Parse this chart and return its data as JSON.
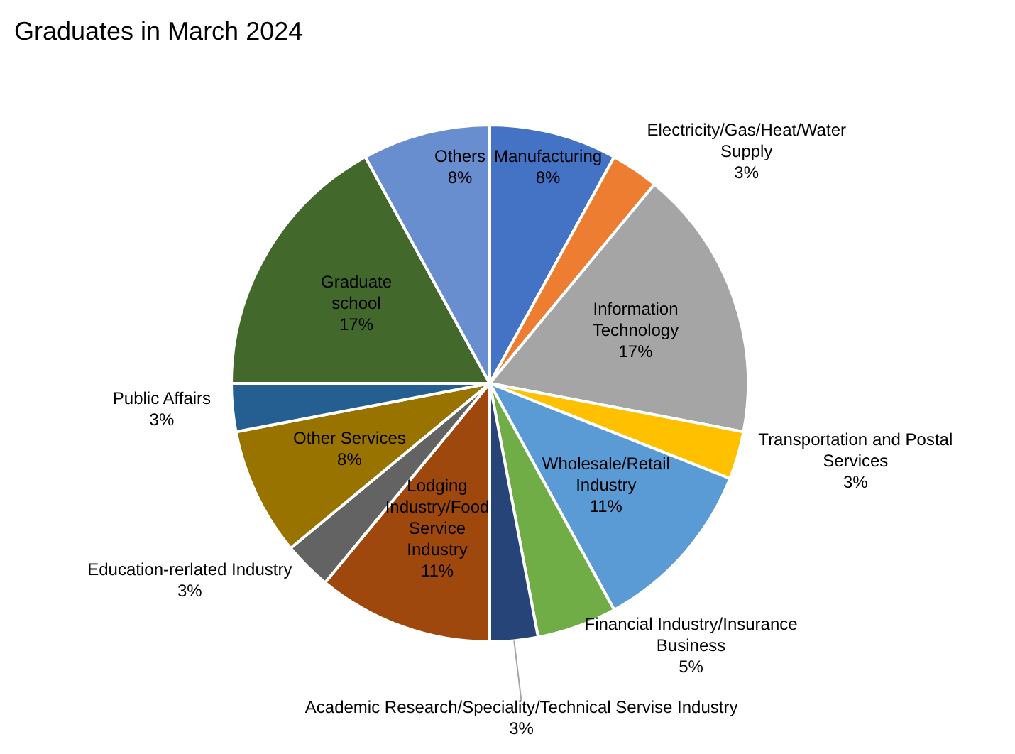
{
  "chart_data": {
    "type": "pie",
    "title": "Graduates in March 2024",
    "categories": [
      "Manufacturing",
      "Electricity/Gas/Heat/Water Supply",
      "Information Technology",
      "Transportation and Postal Services",
      "Wholesale/Retail Industry",
      "Financial Industry/Insurance Business",
      "Academic Research/Speciality/Technical Servise Industry",
      "Lodging Industry/Food Service Industry",
      "Education-rerlated Industry",
      "Other Services",
      "Public Affairs",
      "Graduate school",
      "Others"
    ],
    "values": [
      8,
      3,
      17,
      3,
      11,
      5,
      3,
      11,
      3,
      8,
      3,
      17,
      8
    ],
    "value_labels": [
      "8%",
      "3%",
      "17%",
      "3%",
      "11%",
      "5%",
      "3%",
      "11%",
      "3%",
      "8%",
      "3%",
      "17%",
      "8%"
    ],
    "colors": [
      "#4472c4",
      "#ed7d31",
      "#a5a5a5",
      "#ffc000",
      "#5b9bd5",
      "#70ad47",
      "#264478",
      "#9e480e",
      "#636363",
      "#997300",
      "#255e91",
      "#43682b",
      "#698ed0"
    ],
    "legend": false
  }
}
